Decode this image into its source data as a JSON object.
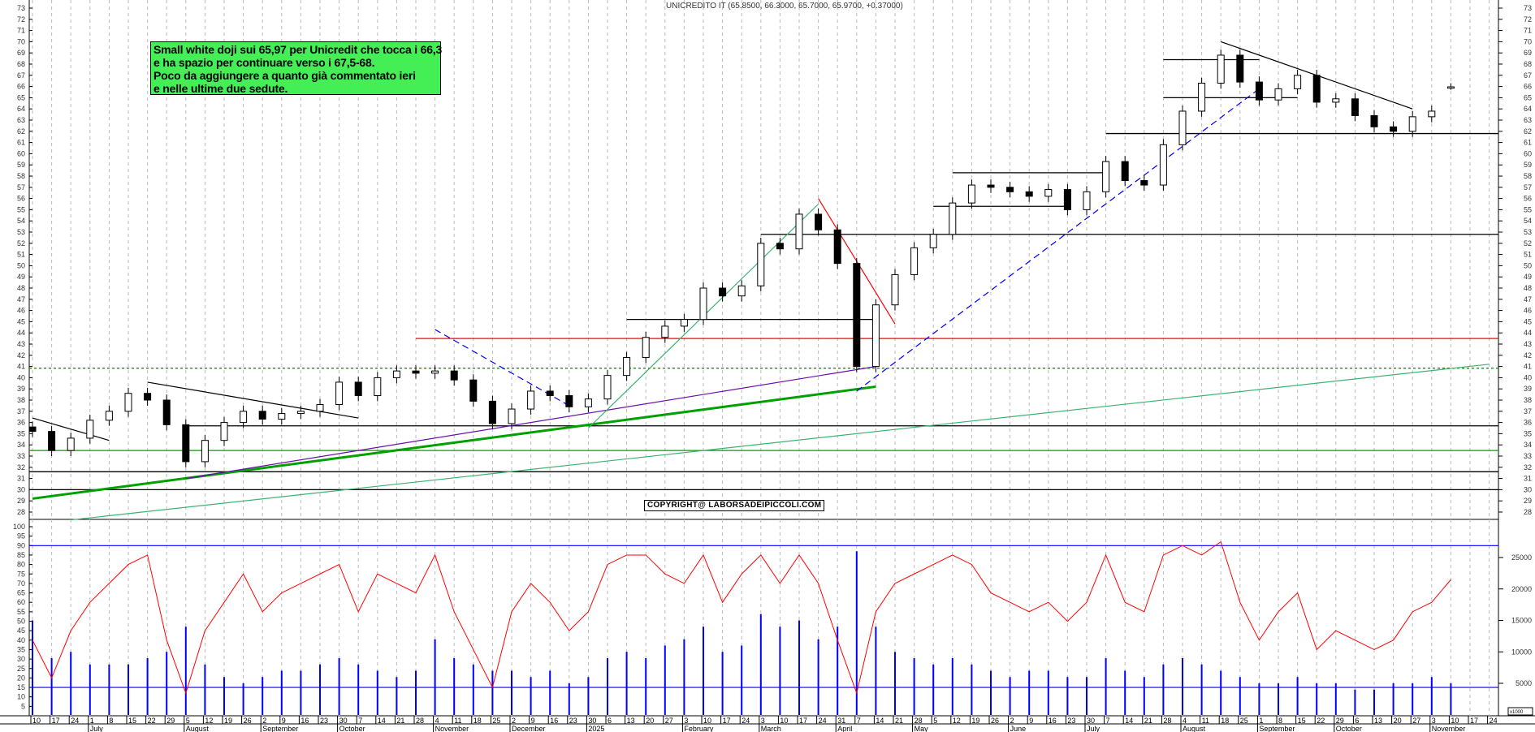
{
  "header": {
    "title": "UNICREDITO IT (65.8500, 66.3000, 65.7000, 65.9700, +0.37000)"
  },
  "annotation": {
    "lines": [
      "Small white doji sui 65,97 per Unicredit che tocca i 66,3",
      "e ha spazio per continuare verso i 67,5-68.",
      "Poco da aggiungere a quanto già commentato ieri",
      "e nelle ultime due sedute."
    ],
    "background": "#44ee55"
  },
  "copyright": "COPYRIGHT@ LABORSADEIPICCOLI.COM",
  "chart_data": {
    "type": "candlestick",
    "title": "UNICREDITO IT (65.8500, 66.3000, 65.7000, 65.9700, +0.37000)",
    "last_bar": {
      "open": 65.85,
      "high": 66.3,
      "low": 65.7,
      "close": 65.97,
      "change": 0.37
    },
    "price_axis": {
      "ylim": [
        28,
        73
      ]
    },
    "oscillator_axis": {
      "ylim": [
        0,
        100
      ],
      "ticks_step": 5
    },
    "volume_axis": {
      "ylim": [
        0,
        25000
      ],
      "ticks": [
        5000,
        10000,
        15000,
        20000,
        25000
      ],
      "unit": "x1000"
    },
    "grid": "vertical dashed",
    "dates": [
      "2024-06-10",
      "2024-06-17",
      "2024-06-24",
      "2024-07-01",
      "2024-07-08",
      "2024-07-15",
      "2024-07-22",
      "2024-07-29",
      "2024-08-05",
      "2024-08-12",
      "2024-08-19",
      "2024-08-26",
      "2024-09-02",
      "2024-09-09",
      "2024-09-16",
      "2024-09-23",
      "2024-09-30",
      "2024-10-07",
      "2024-10-14",
      "2024-10-21",
      "2024-10-28",
      "2024-11-04",
      "2024-11-11",
      "2024-11-18",
      "2024-11-25",
      "2024-12-02",
      "2024-12-09",
      "2024-12-16",
      "2024-12-23",
      "2024-12-30",
      "2025-01-06",
      "2025-01-13",
      "2025-01-20",
      "2025-01-27",
      "2025-02-03",
      "2025-02-10",
      "2025-02-17",
      "2025-02-24",
      "2025-03-03",
      "2025-03-10",
      "2025-03-17",
      "2025-03-24",
      "2025-03-31",
      "2025-04-07",
      "2025-04-14",
      "2025-04-21",
      "2025-04-28",
      "2025-05-05",
      "2025-05-12",
      "2025-05-19",
      "2025-05-26",
      "2025-06-02",
      "2025-06-09",
      "2025-06-16",
      "2025-06-23",
      "2025-06-30",
      "2025-07-07",
      "2025-07-14",
      "2025-07-21",
      "2025-07-28",
      "2025-08-04",
      "2025-08-11",
      "2025-08-18",
      "2025-08-25",
      "2025-09-01",
      "2025-09-08",
      "2025-09-15",
      "2025-09-22",
      "2025-09-29",
      "2025-10-06",
      "2025-10-13",
      "2025-10-20",
      "2025-10-27",
      "2025-11-03",
      "2025-11-10"
    ],
    "close": [
      35.2,
      33.5,
      34.6,
      36.2,
      37.0,
      38.6,
      38.0,
      35.8,
      32.5,
      34.4,
      36.0,
      37.0,
      36.3,
      36.8,
      37.0,
      37.6,
      39.6,
      38.4,
      40.0,
      40.6,
      40.4,
      40.6,
      39.8,
      37.9,
      35.9,
      37.2,
      38.8,
      38.4,
      37.4,
      38.1,
      40.2,
      41.8,
      43.6,
      44.6,
      45.2,
      48.0,
      47.3,
      48.2,
      52.0,
      51.5,
      54.6,
      53.2,
      50.2,
      41.0,
      46.5,
      49.2,
      51.6,
      52.8,
      55.6,
      57.2,
      57.0,
      56.6,
      56.2,
      56.8,
      55.0,
      56.6,
      59.3,
      57.6,
      57.2,
      60.8,
      63.8,
      66.3,
      68.8,
      66.4,
      64.8,
      65.8,
      67.0,
      64.6,
      64.9,
      63.4,
      62.4,
      62.0,
      63.3,
      63.8,
      65.97
    ],
    "oscillator": [
      40,
      20,
      45,
      60,
      70,
      80,
      85,
      40,
      12,
      45,
      60,
      75,
      55,
      65,
      70,
      75,
      80,
      55,
      75,
      70,
      65,
      85,
      55,
      35,
      15,
      55,
      70,
      60,
      45,
      55,
      80,
      85,
      85,
      75,
      70,
      85,
      60,
      75,
      85,
      70,
      85,
      70,
      40,
      12,
      55,
      70,
      75,
      80,
      85,
      80,
      65,
      60,
      55,
      60,
      50,
      60,
      85,
      60,
      55,
      85,
      90,
      85,
      92,
      60,
      40,
      55,
      65,
      35,
      45,
      40,
      35,
      40,
      55,
      60,
      72
    ],
    "volume_thousands": [
      15,
      9,
      10,
      8,
      8,
      8,
      9,
      10,
      14,
      8,
      6,
      5,
      6,
      7,
      7,
      8,
      9,
      8,
      7,
      6,
      7,
      12,
      9,
      8,
      7,
      7,
      6,
      7,
      5,
      6,
      9,
      10,
      9,
      11,
      12,
      14,
      10,
      11,
      16,
      14,
      15,
      12,
      14,
      26,
      14,
      10,
      9,
      8,
      9,
      8,
      7,
      6,
      7,
      7,
      6,
      6,
      9,
      7,
      6,
      8,
      9,
      8,
      7,
      6,
      5,
      5,
      6,
      5,
      5,
      4,
      4,
      5,
      5,
      6,
      5
    ],
    "future_ticks": [
      "2025-11-17",
      "2025-11-24"
    ],
    "month_labels": [
      {
        "label": "July",
        "date": "2024-07-01"
      },
      {
        "label": "August",
        "date": "2024-08-05"
      },
      {
        "label": "September",
        "date": "2024-09-02"
      },
      {
        "label": "October",
        "date": "2024-09-30"
      },
      {
        "label": "November",
        "date": "2024-11-04"
      },
      {
        "label": "December",
        "date": "2024-12-02"
      },
      {
        "label": "2025",
        "date": "2024-12-30"
      },
      {
        "label": "February",
        "date": "2025-02-03"
      },
      {
        "label": "March",
        "date": "2025-03-03"
      },
      {
        "label": "April",
        "date": "2025-03-31"
      },
      {
        "label": "May",
        "date": "2025-04-28"
      },
      {
        "label": "June",
        "date": "2025-06-02"
      },
      {
        "label": "July",
        "date": "2025-06-30"
      },
      {
        "label": "August",
        "date": "2025-08-04"
      },
      {
        "label": "September",
        "date": "2025-09-01"
      },
      {
        "label": "October",
        "date": "2025-09-29"
      },
      {
        "label": "November",
        "date": "2025-11-03"
      }
    ],
    "levels": [
      {
        "value": 30.0,
        "color": "#000000",
        "from": null,
        "to": null,
        "style": "solid"
      },
      {
        "value": 31.6,
        "color": "#000000",
        "from": null,
        "to": null,
        "style": "solid"
      },
      {
        "value": 33.5,
        "color": "#00a000",
        "from": null,
        "to": null,
        "style": "solid"
      },
      {
        "value": 35.7,
        "color": "#000000",
        "from": "2024-08-05",
        "to": null,
        "style": "solid"
      },
      {
        "value": 40.85,
        "color": "#00a000",
        "from": null,
        "to": null,
        "style": "dashed"
      },
      {
        "value": 43.5,
        "color": "#ff0000",
        "from": "2024-10-28",
        "to": null,
        "style": "solid"
      },
      {
        "value": 45.2,
        "color": "#000000",
        "from": "2025-01-13",
        "to": "2025-04-14",
        "style": "solid"
      },
      {
        "value": 52.8,
        "color": "#000000",
        "from": "2025-03-03",
        "to": null,
        "style": "solid"
      },
      {
        "value": 55.3,
        "color": "#000000",
        "from": "2025-05-05",
        "to": "2025-06-23",
        "style": "solid"
      },
      {
        "value": 58.3,
        "color": "#000000",
        "from": "2025-05-12",
        "to": "2025-07-07",
        "style": "solid"
      },
      {
        "value": 61.8,
        "color": "#000000",
        "from": "2025-07-07",
        "to": null,
        "style": "solid"
      },
      {
        "value": 65.0,
        "color": "#000000",
        "from": "2025-07-28",
        "to": "2025-09-15",
        "style": "solid"
      },
      {
        "value": 68.4,
        "color": "#000000",
        "from": "2025-07-28",
        "to": "2025-09-01",
        "style": "solid"
      }
    ],
    "trendlines": [
      {
        "from": [
          "2024-06-10",
          29.2
        ],
        "to": [
          "2025-04-14",
          39.2
        ],
        "color": "#00a000",
        "style": "thick"
      },
      {
        "from": [
          "2024-06-24",
          27.3
        ],
        "to": [
          "2025-11-24",
          41.2
        ],
        "color": "#3cb371",
        "style": "solid"
      },
      {
        "from": [
          "2024-08-05",
          31.0
        ],
        "to": [
          "2025-04-14",
          41.0
        ],
        "color": "#6a0dad",
        "style": "solid"
      },
      {
        "from": [
          "2025-04-07",
          38.8
        ],
        "to": [
          "2025-09-01",
          65.8
        ],
        "color": "#0000ff",
        "style": "dashed"
      },
      {
        "from": [
          "2025-08-18",
          70.0
        ],
        "to": [
          "2025-10-27",
          64.0
        ],
        "color": "#000000",
        "style": "solid"
      },
      {
        "from": [
          "2025-03-24",
          56.0
        ],
        "to": [
          "2025-04-21",
          44.8
        ],
        "color": "#ff0000",
        "style": "solid"
      },
      {
        "from": [
          "2024-11-04",
          44.3
        ],
        "to": [
          "2024-12-23",
          37.5
        ],
        "color": "#0000ff",
        "style": "dashed"
      },
      {
        "from": [
          "2024-12-30",
          35.5
        ],
        "to": [
          "2025-03-24",
          55.5
        ],
        "color": "#3cb371",
        "style": "solid"
      },
      {
        "from": [
          "2024-06-10",
          36.4
        ],
        "to": [
          "2024-07-08",
          34.4
        ],
        "color": "#000000",
        "style": "solid"
      },
      {
        "from": [
          "2024-07-22",
          39.6
        ],
        "to": [
          "2024-10-07",
          36.4
        ],
        "color": "#000000",
        "style": "solid"
      }
    ],
    "oscillator_levels": [
      {
        "value": 90,
        "color": "#0000ff"
      },
      {
        "value": 15,
        "color": "#0000ff"
      }
    ],
    "colors": {
      "candle_up": "#ffffff",
      "candle_down": "#000000",
      "oscillator": "#ff0000",
      "volume": "#0000ff",
      "grid": "#bbbbbb"
    }
  }
}
